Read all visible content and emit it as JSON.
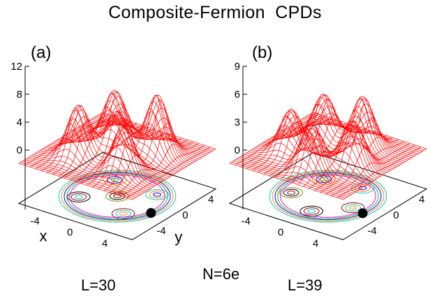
{
  "figure": {
    "title": "Composite-Fermion  CPDs",
    "center_label": "N=6e"
  },
  "chart_data": [
    {
      "type": "surface",
      "panel": "(a)",
      "caption": "L=30",
      "zticks": [
        "12",
        "8",
        "4",
        "0"
      ],
      "xticks": [
        "-4",
        "0",
        "4"
      ],
      "yticks": [
        "4",
        "0",
        "-4"
      ],
      "xlabel": "x",
      "ylabel": "y",
      "zlim": [
        0,
        12
      ],
      "peaks": 5,
      "peak_layout": "ring of 4 plus 1 at center",
      "fixed_electron": "black dot at x≈4.5, y≈-1",
      "colors": {
        "surface": "#ff0000",
        "marker": "#000000"
      }
    },
    {
      "type": "surface",
      "panel": "(b)",
      "caption": "L=39",
      "zticks": [
        "9",
        "6",
        "3",
        "0"
      ],
      "xticks": [
        "-4",
        "0",
        "4"
      ],
      "yticks": [
        "4",
        "0",
        "-4"
      ],
      "xlabel": "",
      "ylabel": "",
      "zlim": [
        0,
        9
      ],
      "peaks": 5,
      "peak_layout": "ring of 5",
      "fixed_electron": "black dot at x≈4.5, y≈-1",
      "colors": {
        "surface": "#ff0000",
        "marker": "#000000"
      }
    }
  ]
}
